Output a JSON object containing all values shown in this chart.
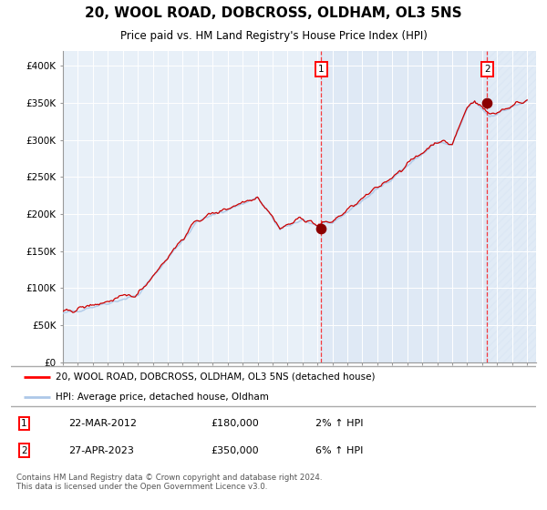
{
  "title": "20, WOOL ROAD, DOBCROSS, OLDHAM, OL3 5NS",
  "subtitle": "Price paid vs. HM Land Registry's House Price Index (HPI)",
  "hpi_color": "#adc8e8",
  "price_color": "#cc0000",
  "plot_bg": "#e8f0f8",
  "ylim": [
    0,
    420000
  ],
  "yticks": [
    0,
    50000,
    100000,
    150000,
    200000,
    250000,
    300000,
    350000,
    400000
  ],
  "ytick_labels": [
    "£0",
    "£50K",
    "£100K",
    "£150K",
    "£200K",
    "£250K",
    "£300K",
    "£350K",
    "£400K"
  ],
  "xstart_year": 1995,
  "xend_year": 2026,
  "sale1_yr": 2012.25,
  "sale1_price_val": 180000,
  "sale1_date": "22-MAR-2012",
  "sale1_price": 180000,
  "sale1_hpi_pct": "2%",
  "sale1_label": "1",
  "sale2_yr": 2023.33,
  "sale2_price_val": 350000,
  "sale2_date": "27-APR-2023",
  "sale2_price": 350000,
  "sale2_hpi_pct": "6%",
  "sale2_label": "2",
  "legend_line1": "20, WOOL ROAD, DOBCROSS, OLDHAM, OL3 5NS (detached house)",
  "legend_line2": "HPI: Average price, detached house, Oldham",
  "footnote": "Contains HM Land Registry data © Crown copyright and database right 2024.\nThis data is licensed under the Open Government Licence v3.0."
}
